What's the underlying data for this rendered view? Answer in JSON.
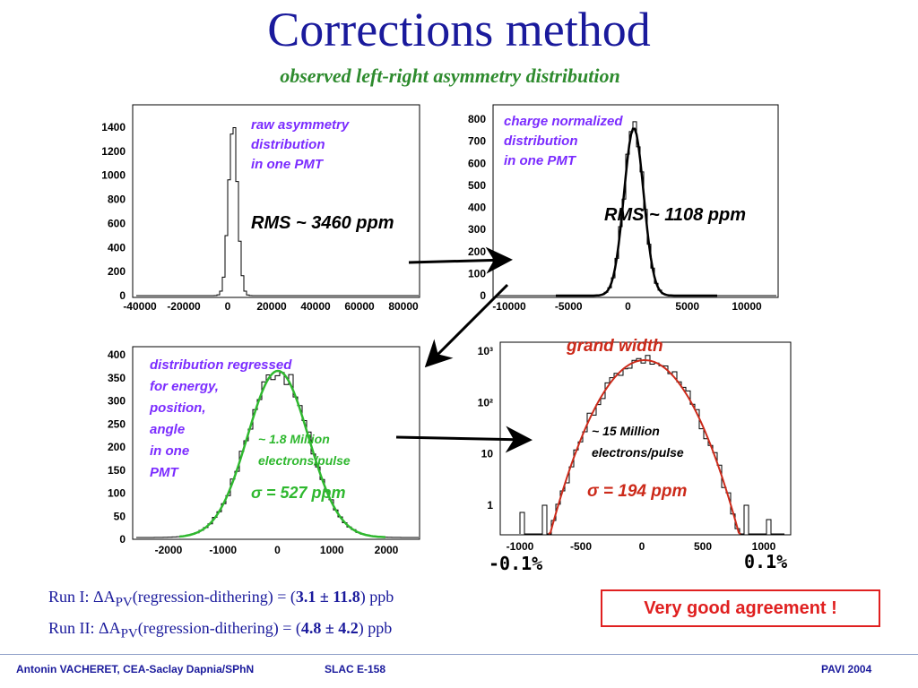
{
  "slide": {
    "title": "Corrections method",
    "subtitle": "observed left-right asymmetry distribution"
  },
  "panels": {
    "raw": {
      "label_lines": [
        "raw asymmetry",
        "distribution",
        "in one PMT"
      ],
      "rms": "RMS ~ 3460 ppm",
      "y_ticks": [
        "1400",
        "1200",
        "1000",
        "800",
        "600",
        "400",
        "200",
        "0"
      ],
      "x_ticks": [
        "-40000",
        "-20000",
        "0",
        "20000",
        "40000",
        "60000",
        "80000"
      ]
    },
    "charge": {
      "label_lines": [
        "charge normalized",
        "distribution",
        "in one PMT"
      ],
      "rms": "RMS ~ 1108 ppm",
      "y_ticks": [
        "800",
        "700",
        "600",
        "500",
        "400",
        "300",
        "200",
        "100",
        "0"
      ],
      "x_ticks": [
        "-10000",
        "-5000",
        "0",
        "5000",
        "10000"
      ]
    },
    "regressed": {
      "label_lines": [
        "distribution regressed",
        "for energy,",
        "position,",
        "angle",
        "in one",
        "PMT"
      ],
      "electrons_lines": [
        "~ 1.8 Million",
        "electrons/pulse"
      ],
      "sigma": "σ = 527 ppm",
      "y_ticks": [
        "400",
        "350",
        "300",
        "250",
        "200",
        "150",
        "100",
        "50",
        "0"
      ],
      "x_ticks": [
        "-2000",
        "-1000",
        "0",
        "1000",
        "2000"
      ]
    },
    "grand": {
      "title": "grand width",
      "electrons_lines": [
        "~ 15 Million",
        "electrons/pulse"
      ],
      "sigma": "σ = 194 ppm",
      "y_ticks": [
        "10³",
        "10²",
        "10",
        "1"
      ],
      "x_ticks": [
        "-1000",
        "-500",
        "0",
        "500",
        "1000"
      ],
      "pct_left": "-0.1%",
      "pct_right": "0.1%"
    }
  },
  "results": {
    "run1_prefix": "Run I:  ΔA",
    "run1_sub": "PV",
    "run1_mid": "(regression-dithering) = (",
    "run1_value": "3.1 ± 11.8",
    "run1_suffix": ") ppb",
    "run2_prefix": "Run II:  ΔA",
    "run2_sub": "PV",
    "run2_mid": "(regression-dithering) = (",
    "run2_value": "4.8 ± 4.2",
    "run2_suffix": ") ppb",
    "agreement": "Very good agreement !"
  },
  "footer": {
    "author": "Antonin VACHERET,  CEA-Saclay  Dapnia/SPhN",
    "experiment": "SLAC E-158",
    "conference": "PAVI 2004"
  },
  "colors": {
    "title": "#1a1a9c",
    "subtitle": "#2e8b2e",
    "label_purple": "#7b2cff",
    "fit_green": "#2fb82f",
    "fit_red": "#cc2a1a",
    "agreement": "#e02020"
  }
}
